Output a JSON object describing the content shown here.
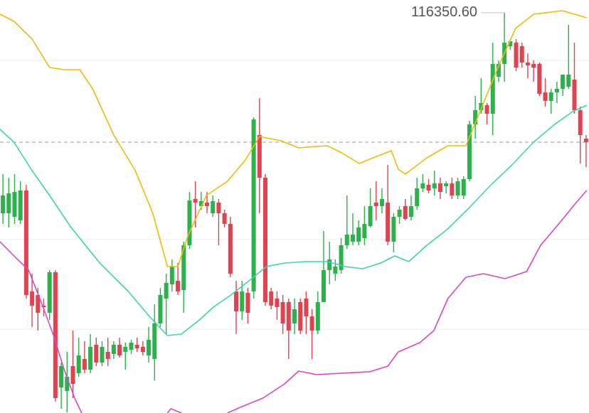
{
  "chart_data": {
    "type": "candlestick",
    "colors": {
      "up": "#2cb14d",
      "down": "#e0434f",
      "grid": "#eeeeee",
      "price_line": "#9a9a9a",
      "label": "#555555"
    },
    "xlim": [
      -0.5,
      100.5
    ],
    "ylim": [
      111846,
      116494
    ],
    "grid_lines": [
      115814,
      113798,
      112790
    ],
    "price_line": 114894,
    "max_high": {
      "value": 116350.6,
      "label": "116350.60"
    },
    "candles": {
      "open": [
        114094,
        114094,
        114054,
        114014,
        114350,
        113214,
        113174,
        113054,
        112974,
        113430,
        112134,
        112094,
        112374,
        112294,
        112454,
        112334,
        112614,
        112414,
        112534,
        112510,
        112614,
        112534,
        112558,
        112614,
        112590,
        112494,
        112454,
        112854,
        113134,
        113294,
        113334,
        113230,
        113734,
        114254,
        114174,
        114214,
        114094,
        114214,
        114094,
        113974,
        113214,
        112990,
        113198,
        113214,
        114974,
        114494,
        113214,
        113134,
        113094,
        113094,
        112854,
        113094,
        113134,
        112934,
        112774,
        113094,
        113454,
        113414,
        113454,
        113734,
        113774,
        113774,
        113814,
        113950,
        114214,
        114174,
        114214,
        113774,
        114054,
        114174,
        114054,
        114174,
        114374,
        114414,
        114374,
        114430,
        114398,
        114430,
        114294,
        114294,
        114478,
        115094,
        115254,
        115310,
        115214,
        115630,
        115774,
        115974,
        116014,
        115974,
        115790,
        115774,
        115774,
        115454,
        115358,
        115454,
        115494,
        115518,
        115598,
        115254,
        114934
      ],
      "high": [
        114534,
        114494,
        114534,
        114454,
        114414,
        113414,
        113254,
        113134,
        113454,
        113454,
        112414,
        112534,
        112774,
        112694,
        112654,
        112734,
        112694,
        112654,
        112694,
        112654,
        112694,
        112638,
        112670,
        112694,
        112654,
        112814,
        113070,
        113254,
        113414,
        113574,
        113534,
        113774,
        114334,
        114454,
        114334,
        114334,
        114294,
        114254,
        114134,
        114054,
        113334,
        113334,
        113254,
        115174,
        115390,
        114534,
        113254,
        113214,
        113174,
        113134,
        113134,
        113134,
        113214,
        113014,
        113214,
        113894,
        113774,
        113574,
        113814,
        114294,
        114094,
        114014,
        114174,
        114374,
        114454,
        114374,
        114638,
        114094,
        114174,
        114254,
        114294,
        114494,
        114534,
        114478,
        114574,
        114494,
        114454,
        114494,
        114494,
        114510,
        115134,
        115414,
        115614,
        115334,
        116014,
        115814,
        116350.6,
        116054,
        116054,
        116014,
        115894,
        115814,
        115790,
        115614,
        115494,
        115574,
        115654,
        116214,
        116014,
        115294,
        114974
      ],
      "low": [
        113974,
        113934,
        113974,
        113974,
        113134,
        112814,
        112774,
        112934,
        112894,
        111974,
        111894,
        111854,
        112014,
        112254,
        112294,
        112294,
        112374,
        112374,
        112374,
        112454,
        112470,
        112334,
        112510,
        112534,
        112494,
        112414,
        112214,
        112814,
        112734,
        113214,
        113174,
        112974,
        113694,
        113934,
        114134,
        114094,
        114054,
        113734,
        113934,
        113374,
        112734,
        112894,
        112854,
        113134,
        114094,
        113054,
        113014,
        112894,
        112734,
        112454,
        112734,
        112734,
        112734,
        112454,
        112734,
        113094,
        113294,
        113334,
        113414,
        113694,
        113734,
        113734,
        113734,
        113934,
        114014,
        114094,
        113734,
        113654,
        113974,
        114014,
        114014,
        114134,
        114334,
        114318,
        114294,
        114254,
        114318,
        114254,
        114254,
        114254,
        114454,
        114934,
        115214,
        115094,
        114974,
        115574,
        115574,
        115934,
        115694,
        115734,
        115614,
        115574,
        115414,
        115294,
        115214,
        115334,
        115414,
        115494,
        115214,
        114654,
        114614
      ],
      "close": [
        114294,
        114318,
        114334,
        114350,
        113174,
        113054,
        112974,
        113038,
        113430,
        112014,
        112374,
        112254,
        112174,
        112494,
        112334,
        112590,
        112414,
        112590,
        112454,
        112614,
        112494,
        112590,
        112638,
        112574,
        112534,
        112670,
        112854,
        113174,
        113310,
        113494,
        113214,
        113734,
        114238,
        114214,
        114230,
        114174,
        114230,
        114094,
        113974,
        113414,
        112990,
        113214,
        112974,
        115150,
        114494,
        113094,
        113054,
        113038,
        112854,
        112774,
        113014,
        112774,
        112934,
        112774,
        113094,
        113454,
        113574,
        113494,
        113734,
        113854,
        113854,
        113934,
        113974,
        114174,
        114174,
        114254,
        113774,
        114054,
        114134,
        114030,
        114174,
        114374,
        114430,
        114350,
        114430,
        114334,
        114430,
        114294,
        114454,
        114478,
        115094,
        115254,
        115334,
        115214,
        115774,
        115774,
        116014,
        116030,
        115734,
        115790,
        115758,
        115734,
        115438,
        115358,
        115454,
        115494,
        115654,
        115654,
        115254,
        114974,
        114894
      ]
    },
    "lines": [
      {
        "color": "#f0b90b",
        "x": [
          -0.5,
          1.9,
          5.0,
          8.0,
          10.5,
          13.2,
          15.4,
          19.0,
          22.7,
          25.7,
          28.2,
          30.0,
          31.8,
          34.9,
          38.5,
          41.6,
          44.0,
          47.7,
          50.7,
          55.6,
          58.1,
          61.1,
          63.5,
          66.6,
          67.8,
          69.0,
          72.7,
          76.3,
          79.4,
          82.4,
          84.9,
          87.9,
          91.0,
          95.9,
          100.1
        ],
        "values": [
          116334,
          116254,
          116054,
          115734,
          115710,
          115710,
          115494,
          114974,
          114574,
          114094,
          113494,
          113494,
          113854,
          114294,
          114454,
          114694,
          114958,
          114910,
          114830,
          114854,
          114774,
          114654,
          114718,
          114798,
          114590,
          114534,
          114718,
          114854,
          114854,
          115334,
          115734,
          116174,
          116334,
          116374,
          116294
        ]
      },
      {
        "color": "#3fd3ad",
        "x": [
          -0.5,
          1.9,
          5.0,
          8.0,
          11.7,
          16.6,
          21.5,
          25.1,
          28.2,
          30.6,
          33.7,
          36.1,
          39.1,
          42.2,
          45.2,
          48.3,
          52.0,
          55.6,
          58.7,
          61.7,
          64.8,
          67.2,
          69.6,
          72.7,
          76.3,
          80.0,
          83.7,
          87.3,
          91.0,
          94.6,
          97.7,
          100.1
        ],
        "values": [
          115038,
          114894,
          114574,
          114294,
          113934,
          113534,
          113214,
          112934,
          112718,
          112734,
          112894,
          113038,
          113174,
          113334,
          113494,
          113534,
          113550,
          113550,
          113494,
          113470,
          113534,
          113614,
          113550,
          113734,
          113918,
          114158,
          114414,
          114638,
          114894,
          115094,
          115238,
          115310
        ]
      },
      {
        "color": "#d946c4",
        "x": [
          -0.5,
          1.9,
          4.4,
          6.8,
          8.6,
          10.5,
          12.3,
          13.5,
          21.0,
          28.2,
          28.8,
          30.6,
          34.5,
          38.5,
          41.0,
          44.6,
          48.3,
          50.7,
          53.8,
          58.1,
          62.9,
          66.0,
          67.8,
          71.5,
          73.9,
          76.3,
          79.4,
          82.4,
          86.1,
          89.8,
          92.2,
          95.3,
          98.3,
          100.1
        ],
        "values": [
          113774,
          113614,
          113454,
          113054,
          112734,
          112334,
          112014,
          111846,
          null,
          111846,
          111894,
          111846,
          null,
          111846,
          111918,
          112014,
          112174,
          112318,
          112278,
          112294,
          112310,
          112374,
          112534,
          112638,
          112774,
          113134,
          113374,
          113414,
          113358,
          113438,
          113734,
          113974,
          114214,
          114350
        ]
      }
    ]
  }
}
